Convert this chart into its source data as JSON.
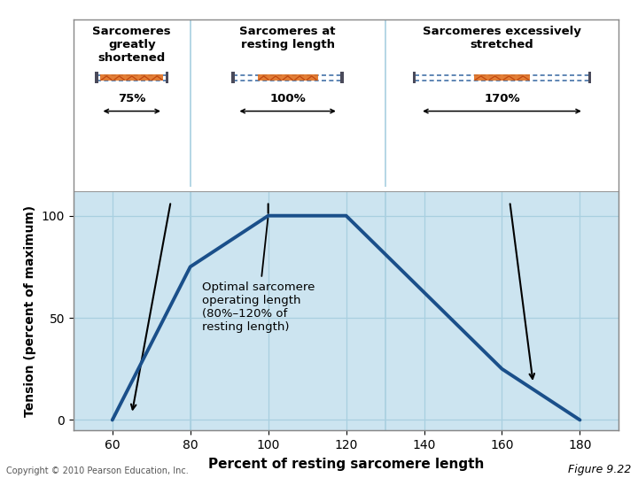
{
  "bg_color": "#cce4f0",
  "outer_bg_color": "#ffffff",
  "line_x": [
    60,
    80,
    100,
    120,
    160,
    180
  ],
  "line_y": [
    0,
    75,
    100,
    100,
    25,
    0
  ],
  "line_color": "#1a4f8a",
  "line_width": 2.8,
  "xlabel": "Percent of resting sarcomere length",
  "ylabel": "Tension (percent of maximum)",
  "xlabel_fontsize": 11,
  "ylabel_fontsize": 10,
  "xticks": [
    60,
    80,
    100,
    120,
    140,
    160,
    180
  ],
  "yticks": [
    0,
    50,
    100
  ],
  "xlim": [
    50,
    190
  ],
  "ylim": [
    -5,
    112
  ],
  "grid_color": "#a8cfe0",
  "annotation_text": "Optimal sarcomere\noperating length\n(80%–120% of\nresting length)",
  "annotation_fontsize": 9.5,
  "section1_label": "Sarcomeres\ngreatly\nshortened",
  "section2_label": "Sarcomeres at\nresting length",
  "section3_label": "Sarcomeres excessively\nstretched",
  "divider1_x": 80,
  "divider2_x": 130,
  "figure_label": "Figure 9.22",
  "copyright_text": "Copyright © 2010 Pearson Education, Inc.",
  "sarcomere_orange": "#e07020",
  "sarcomere_blue_line": "#4472a8",
  "sarcomere_bg": "#cce4f0",
  "zline_color": "#4a4a5a",
  "arrow_color": "#333333",
  "black_arrow_color": "#111111"
}
